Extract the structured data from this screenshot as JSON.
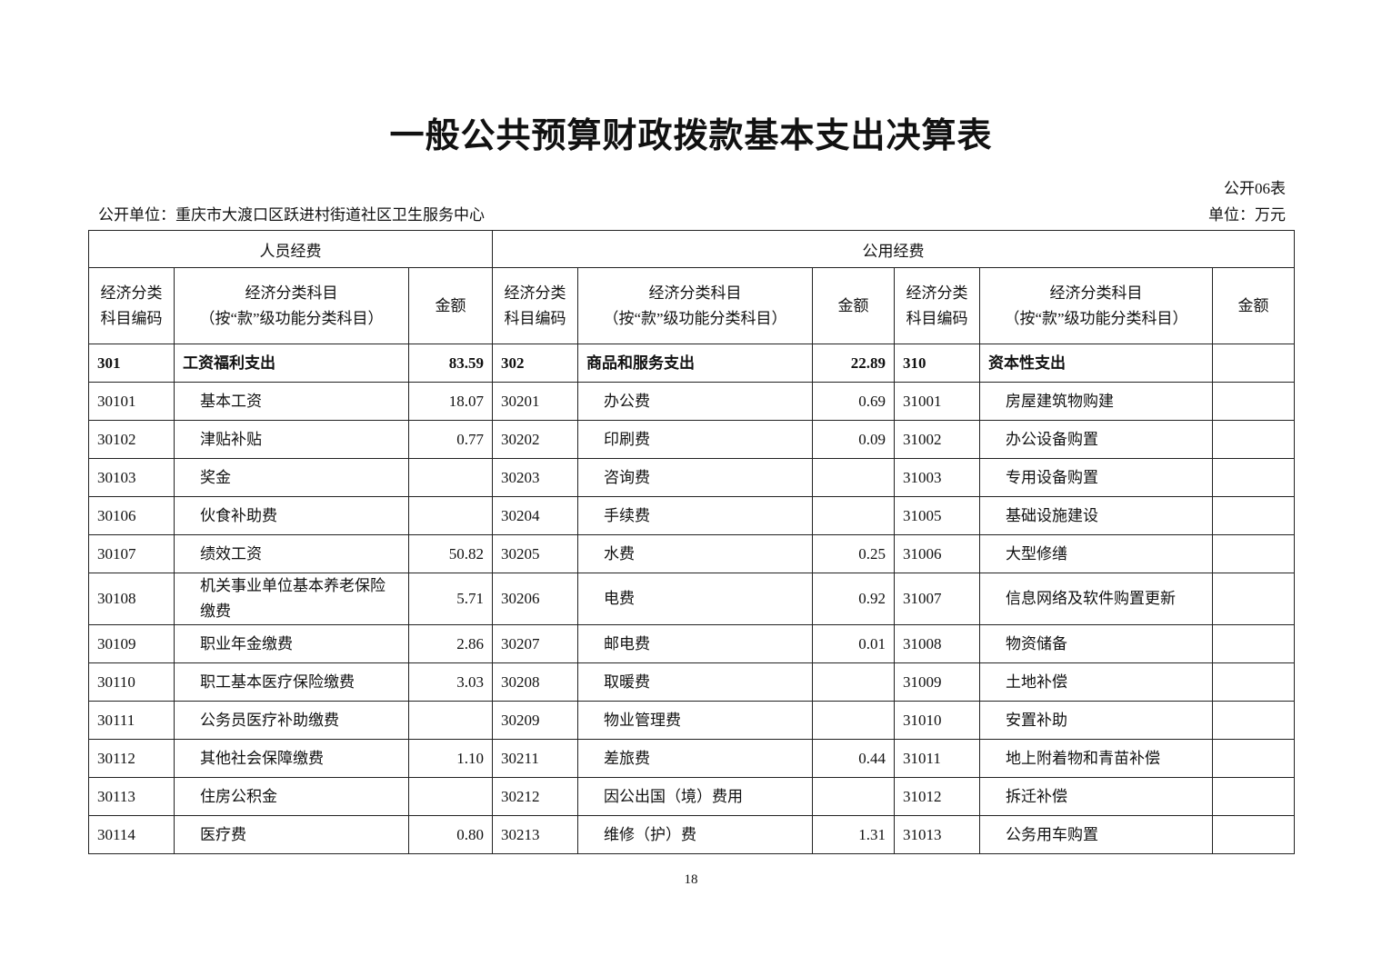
{
  "title": "一般公共预算财政拨款基本支出决算表",
  "form_no": "公开06表",
  "unit_left": "公开单位：重庆市大渡口区跃进村街道社区卫生服务中心",
  "unit_right": "单位：万元",
  "groups": [
    "人员经费",
    "公用经费"
  ],
  "headers": {
    "code": "经济分类科目编码",
    "code_l1": "经济分类",
    "code_l2": "科目编码",
    "subject_l1": "经济分类科目",
    "subject_l2": "（按“款”级功能分类科目）",
    "amount": "金额"
  },
  "rows": [
    [
      "301",
      "工资福利支出",
      "83.59",
      "302",
      "商品和服务支出",
      "22.89",
      "310",
      "资本性支出",
      ""
    ],
    [
      "30101",
      "基本工资",
      "18.07",
      "30201",
      "办公费",
      "0.69",
      "31001",
      "房屋建筑物购建",
      ""
    ],
    [
      "30102",
      "津贴补贴",
      "0.77",
      "30202",
      "印刷费",
      "0.09",
      "31002",
      "办公设备购置",
      ""
    ],
    [
      "30103",
      "奖金",
      "",
      "30203",
      "咨询费",
      "",
      "31003",
      "专用设备购置",
      ""
    ],
    [
      "30106",
      "伙食补助费",
      "",
      "30204",
      "手续费",
      "",
      "31005",
      "基础设施建设",
      ""
    ],
    [
      "30107",
      "绩效工资",
      "50.82",
      "30205",
      "水费",
      "0.25",
      "31006",
      "大型修缮",
      ""
    ],
    [
      "30108",
      "机关事业单位基本养老保险缴费",
      "5.71",
      "30206",
      "电费",
      "0.92",
      "31007",
      "信息网络及软件购置更新",
      ""
    ],
    [
      "30109",
      "职业年金缴费",
      "2.86",
      "30207",
      "邮电费",
      "0.01",
      "31008",
      "物资储备",
      ""
    ],
    [
      "30110",
      "职工基本医疗保险缴费",
      "3.03",
      "30208",
      "取暖费",
      "",
      "31009",
      "土地补偿",
      ""
    ],
    [
      "30111",
      "公务员医疗补助缴费",
      "",
      "30209",
      "物业管理费",
      "",
      "31010",
      "安置补助",
      ""
    ],
    [
      "30112",
      "其他社会保障缴费",
      "1.10",
      "30211",
      "差旅费",
      "0.44",
      "31011",
      "地上附着物和青苗补偿",
      ""
    ],
    [
      "30113",
      "住房公积金",
      "",
      "30212",
      "因公出国（境）费用",
      "",
      "31012",
      "拆迁补偿",
      ""
    ],
    [
      "30114",
      "医疗费",
      "0.80",
      "30213",
      "维修（护）费",
      "1.31",
      "31013",
      "公务用车购置",
      ""
    ]
  ],
  "page_number": "18"
}
